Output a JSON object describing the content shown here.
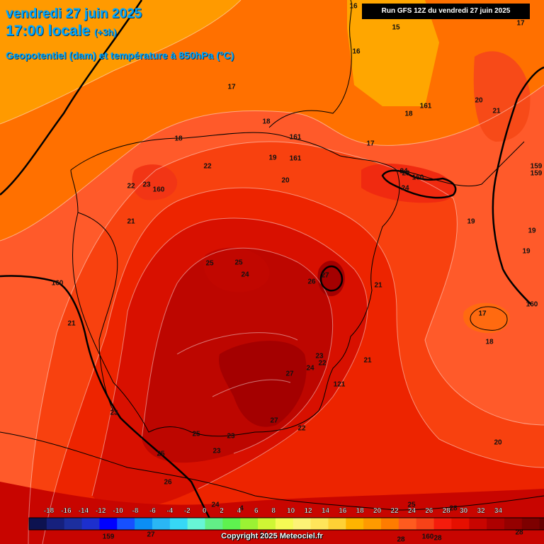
{
  "header": {
    "date": "vendredi 27 juin 2025",
    "time": "17:00 locale",
    "offset": "(+3h)",
    "field": "Geopotentiel (dam) et température à 850hPa (°C)",
    "run": "Run GFS 12Z du vendredi 27 juin 2025"
  },
  "legend": {
    "ticks": [
      "-18",
      "-16",
      "-14",
      "-12",
      "-10",
      "-8",
      "-6",
      "-4",
      "-2",
      "0",
      "2",
      "4",
      "6",
      "8",
      "10",
      "12",
      "14",
      "16",
      "18",
      "20",
      "22",
      "24",
      "26",
      "28",
      "30",
      "32",
      "34"
    ],
    "colors": [
      "#0d1250",
      "#16207d",
      "#1c2e9e",
      "#1d2fcd",
      "#0000ff",
      "#1650ff",
      "#0b8ef4",
      "#2ab6f4",
      "#36d8f6",
      "#67f5d6",
      "#62ef87",
      "#5ef24f",
      "#9bf233",
      "#cff634",
      "#f5fa54",
      "#fcf276",
      "#ffe55a",
      "#ffd135",
      "#ffb400",
      "#ff9a00",
      "#ff7c00",
      "#ff5b1f",
      "#f74218",
      "#f41c0c",
      "#e60f00",
      "#c80500",
      "#ad0000",
      "#950000",
      "#7d0000",
      "#660000",
      "#000000"
    ]
  },
  "labels": [
    {
      "text": "16"
    },
    {
      "text": "15"
    },
    {
      "text": "16"
    },
    {
      "text": "17"
    },
    {
      "text": "17"
    },
    {
      "text": "20"
    },
    {
      "text": "21"
    },
    {
      "text": "161"
    },
    {
      "text": "18"
    },
    {
      "text": "18"
    },
    {
      "text": "18"
    },
    {
      "text": "161"
    },
    {
      "text": "17"
    },
    {
      "text": "19"
    },
    {
      "text": "161"
    },
    {
      "text": "22"
    },
    {
      "text": "20"
    },
    {
      "text": "22"
    },
    {
      "text": "23"
    },
    {
      "text": "160"
    },
    {
      "text": "24"
    },
    {
      "text": "23"
    },
    {
      "text": "160"
    },
    {
      "text": "24"
    },
    {
      "text": "159"
    },
    {
      "text": "159"
    },
    {
      "text": "21"
    },
    {
      "text": "19"
    },
    {
      "text": "19"
    },
    {
      "text": "19"
    },
    {
      "text": "25"
    },
    {
      "text": "25"
    },
    {
      "text": "24"
    },
    {
      "text": "27"
    },
    {
      "text": "26"
    },
    {
      "text": "160"
    },
    {
      "text": "21"
    },
    {
      "text": "160"
    },
    {
      "text": "17"
    },
    {
      "text": "21"
    },
    {
      "text": "18"
    },
    {
      "text": "23"
    },
    {
      "text": "22"
    },
    {
      "text": "24"
    },
    {
      "text": "27"
    },
    {
      "text": "21"
    },
    {
      "text": "121"
    },
    {
      "text": "23"
    },
    {
      "text": "27"
    },
    {
      "text": "22"
    },
    {
      "text": "25"
    },
    {
      "text": "23"
    },
    {
      "text": "23"
    },
    {
      "text": "20"
    },
    {
      "text": "25"
    },
    {
      "text": "26"
    },
    {
      "text": "24"
    },
    {
      "text": "4"
    },
    {
      "text": "25"
    },
    {
      "text": "28"
    },
    {
      "text": "159"
    },
    {
      "text": "27"
    },
    {
      "text": "24"
    },
    {
      "text": "28"
    },
    {
      "text": "160"
    },
    {
      "text": "28"
    },
    {
      "text": "28"
    }
  ],
  "copyright": "Copyright 2025 Meteociel.fr"
}
